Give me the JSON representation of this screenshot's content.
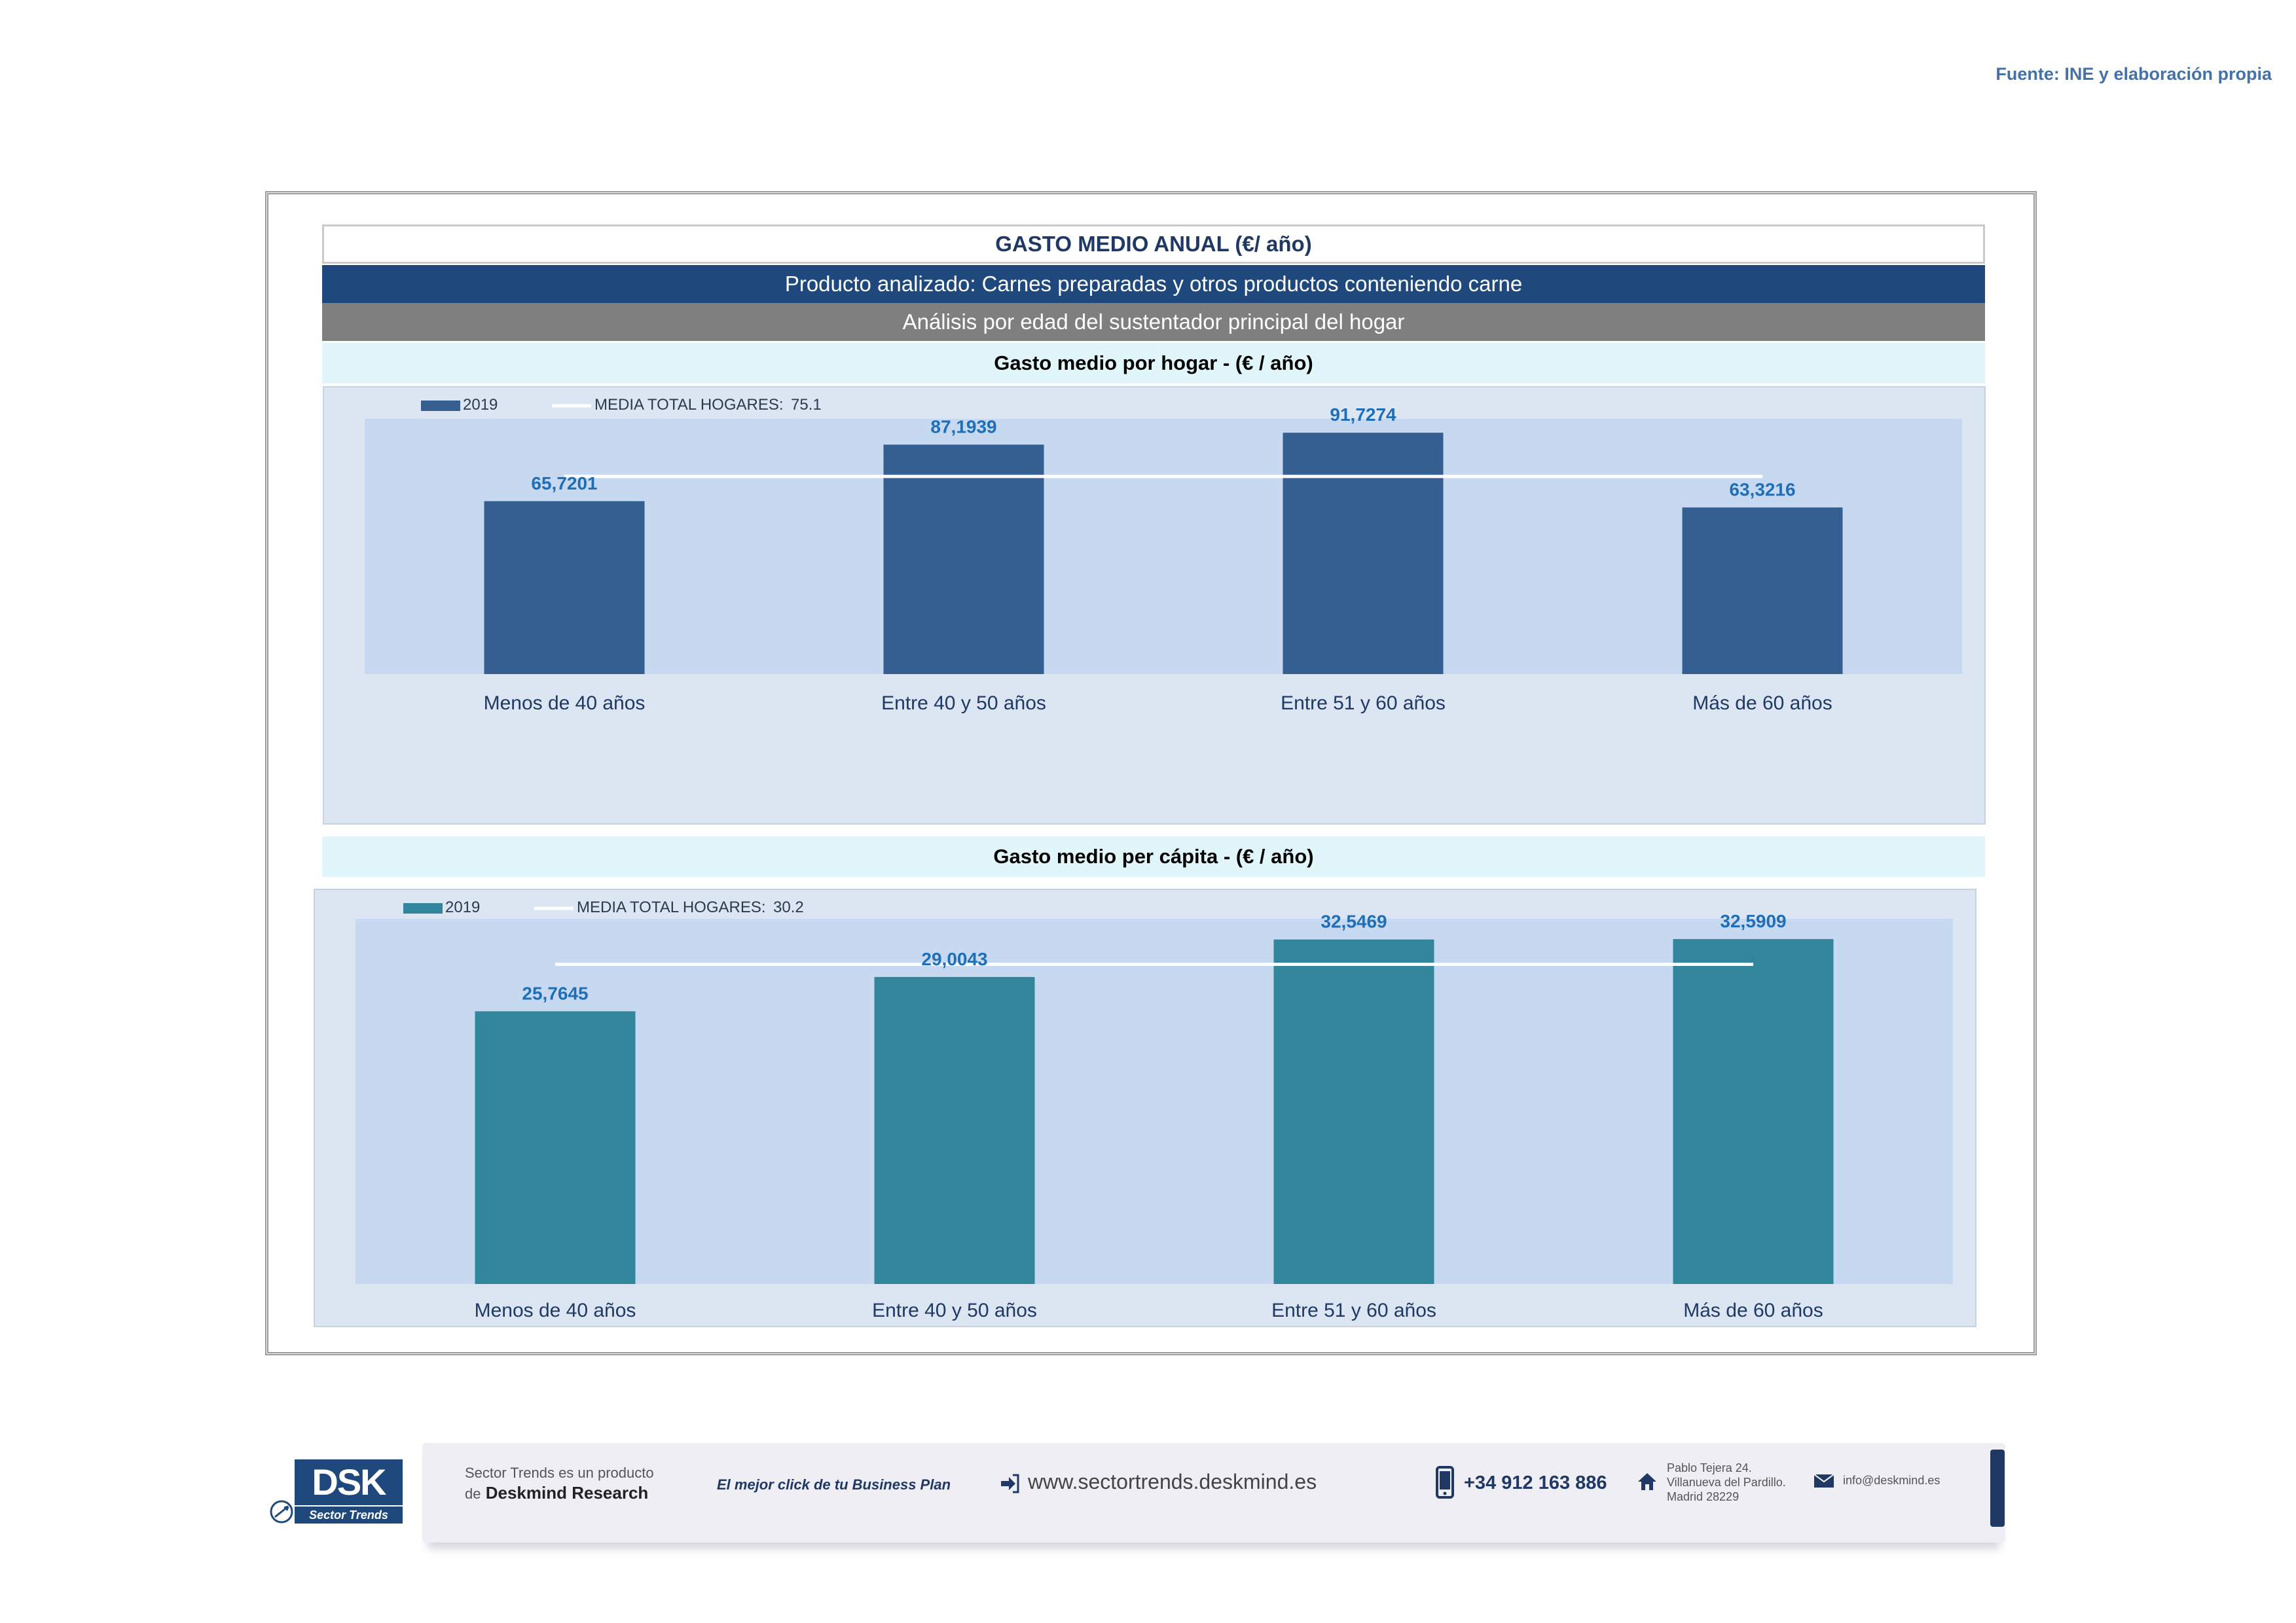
{
  "source": "Fuente: INE y elaboración propia",
  "header": {
    "title": "GASTO MEDIO ANUAL (€/ año)",
    "product": "Producto analizado: Carnes preparadas y otros productos conteniendo carne",
    "analysis": "Análisis por edad del sustentador principal del hogar"
  },
  "colors": {
    "bar1": "#355e91",
    "bar2": "#31869b",
    "plot_bg": "#c6d9f1",
    "chart_bg": "#dce6f2",
    "mean_line": "#ffffff"
  },
  "chart_data": [
    {
      "type": "bar",
      "title": "Gasto medio por hogar -  (€ / año)",
      "categories": [
        "Menos de 40 años",
        "Entre 40 y 50 años",
        "Entre 51  y 60 años",
        "Más de 60 años"
      ],
      "series": [
        {
          "name": "2019",
          "values": [
            65.7201,
            87.1939,
            91.7274,
            63.3216
          ]
        }
      ],
      "value_labels": [
        "65,7201",
        "87,1939",
        "91,7274",
        "63,3216"
      ],
      "reference_line": {
        "label": "MEDIA TOTAL  HOGARES:",
        "value": 75.1,
        "value_text": "75.1"
      },
      "legend": "top-left",
      "ylim": [
        0,
        97
      ]
    },
    {
      "type": "bar",
      "title": "Gasto medio per cápita -  (€ / año)",
      "categories": [
        "Menos de 40 años",
        "Entre 40 y 50 años",
        "Entre 51  y 60 años",
        "Más de 60 años"
      ],
      "series": [
        {
          "name": "2019",
          "values": [
            25.7645,
            29.0043,
            32.5469,
            32.5909
          ]
        }
      ],
      "value_labels": [
        "25,7645",
        "29,0043",
        "32,5469",
        "32,5909"
      ],
      "reference_line": {
        "label": "MEDIA TOTAL  HOGARES:",
        "value": 30.2,
        "value_text": "30.2"
      },
      "legend": "top-left",
      "ylim": [
        0,
        34.5
      ]
    }
  ],
  "footer": {
    "logo_text": "DSK",
    "logo_sub": "Sector Trends",
    "line1": "Sector Trends es un producto",
    "line2_prefix": "de",
    "line2_brand": "Deskmind Research",
    "slogan": "El mejor click de tu Business Plan",
    "url": "www.sectortrends.deskmind.es",
    "phone": "+34 912 163 886",
    "address1": "Pablo Tejera 24.",
    "address2": "Villanueva del Pardillo.",
    "address3": "Madrid 28229",
    "email": "info@deskmind.es",
    "icons": [
      "login-arrow-icon",
      "phone-icon",
      "home-icon",
      "mail-icon"
    ]
  }
}
